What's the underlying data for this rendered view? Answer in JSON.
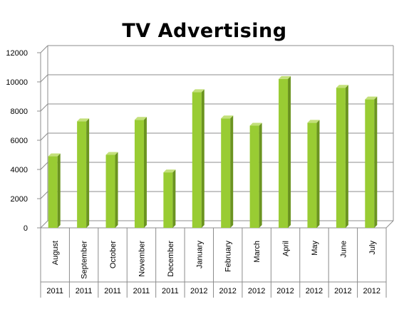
{
  "chart_data": {
    "type": "bar",
    "title": "TV Advertising",
    "xlabel": "",
    "ylabel": "",
    "ylim": [
      0,
      12000
    ],
    "yticks": [
      "0",
      "2000",
      "4000",
      "6000",
      "8000",
      "10000",
      "12000"
    ],
    "grid": true,
    "legend": "none",
    "categories": [
      {
        "month": "August",
        "year": "2011"
      },
      {
        "month": "September",
        "year": "2011"
      },
      {
        "month": "October",
        "year": "2011"
      },
      {
        "month": "November",
        "year": "2011"
      },
      {
        "month": "December",
        "year": "2011"
      },
      {
        "month": "January",
        "year": "2012"
      },
      {
        "month": "February",
        "year": "2012"
      },
      {
        "month": "March",
        "year": "2012"
      },
      {
        "month": "April",
        "year": "2012"
      },
      {
        "month": "May",
        "year": "2012"
      },
      {
        "month": "June",
        "year": "2012"
      },
      {
        "month": "July",
        "year": "2012"
      }
    ],
    "values": [
      4900,
      7300,
      5000,
      7400,
      3800,
      9300,
      7500,
      7000,
      10200,
      7200,
      9600,
      8800
    ],
    "colors": {
      "bar_front": "#99cc33",
      "bar_side": "#6b9420",
      "bar_top": "#c3e07a",
      "grid": "#8c8c8c",
      "axis": "#8c8c8c",
      "text": "#000000"
    }
  }
}
